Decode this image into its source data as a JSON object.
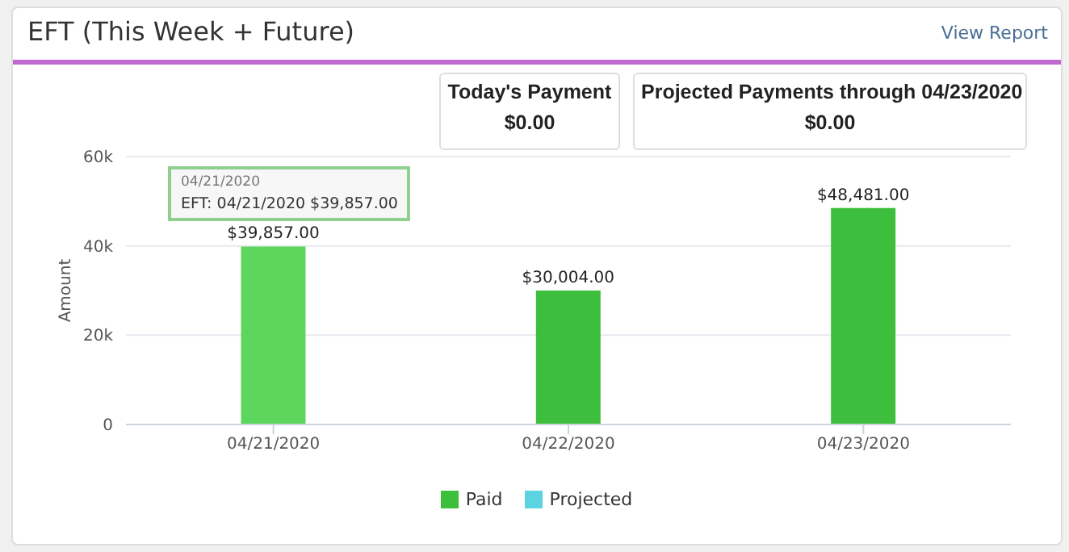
{
  "chart_data": {
    "type": "bar",
    "title": "EFT (This Week + Future)",
    "ylabel": "Amount",
    "categories": [
      "04/21/2020",
      "04/22/2020",
      "04/23/2020"
    ],
    "series": [
      {
        "name": "Paid",
        "color": "#3dbf3d",
        "colors": [
          "#5cd65c",
          "#3dbf3d",
          "#3dbf3d"
        ],
        "values": [
          39857,
          30004,
          48481
        ],
        "value_labels": [
          "$39,857.00",
          "$30,004.00",
          "$48,481.00"
        ]
      },
      {
        "name": "Projected",
        "color": "#5bd3e0",
        "values": [
          null,
          null,
          null
        ]
      }
    ],
    "ylim": [
      0,
      60000
    ],
    "yticks": [
      {
        "value": 0,
        "label": "0"
      },
      {
        "value": 20000,
        "label": "20k"
      },
      {
        "value": 40000,
        "label": "40k"
      },
      {
        "value": 60000,
        "label": "60k"
      }
    ],
    "grid": "y",
    "legend": "bottom",
    "annotations": [
      "View Report",
      "Today's Payment",
      "$0.00",
      "Projected Payments through 04/23/2020",
      "$0.00",
      "04/21/2020",
      "EFT: 04/21/2020 $39,857.00"
    ]
  }
}
